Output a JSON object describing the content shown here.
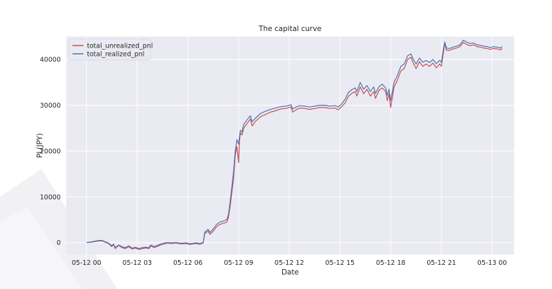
{
  "colors": {
    "plot_background": "#eaeaf2",
    "grid": "#ffffff",
    "unrealized": "#c44e52",
    "realized": "#4c72b0",
    "decor": "#f1f1f4"
  },
  "chart_data": {
    "type": "line",
    "title": "The capital curve",
    "xlabel": "Date",
    "ylabel": "PL(JPY)",
    "x_unit": "hours since 05-12 00",
    "xlim": [
      -1.2,
      25.3
    ],
    "ylim": [
      -2600,
      45000
    ],
    "grid": true,
    "legend_position": "top-left",
    "x_ticks": [
      {
        "value": 0,
        "label": "05-12 00"
      },
      {
        "value": 3,
        "label": "05-12 03"
      },
      {
        "value": 6,
        "label": "05-12 06"
      },
      {
        "value": 9,
        "label": "05-12 09"
      },
      {
        "value": 12,
        "label": "05-12 12"
      },
      {
        "value": 15,
        "label": "05-12 15"
      },
      {
        "value": 18,
        "label": "05-12 18"
      },
      {
        "value": 21,
        "label": "05-12 21"
      },
      {
        "value": 24,
        "label": "05-13 00"
      }
    ],
    "y_ticks": [
      {
        "value": 0,
        "label": "0"
      },
      {
        "value": 10000,
        "label": "10000"
      },
      {
        "value": 20000,
        "label": "20000"
      },
      {
        "value": 30000,
        "label": "30000"
      },
      {
        "value": 40000,
        "label": "40000"
      }
    ],
    "series": [
      {
        "name": "total_unrealized_pnl",
        "color": "#c44e52",
        "points": [
          [
            0,
            0
          ],
          [
            0.3,
            100
          ],
          [
            0.6,
            300
          ],
          [
            0.9,
            400
          ],
          [
            1.1,
            100
          ],
          [
            1.3,
            -200
          ],
          [
            1.5,
            -900
          ],
          [
            1.6,
            -400
          ],
          [
            1.7,
            -1300
          ],
          [
            1.9,
            -600
          ],
          [
            2.1,
            -1100
          ],
          [
            2.3,
            -1300
          ],
          [
            2.5,
            -900
          ],
          [
            2.7,
            -1400
          ],
          [
            2.9,
            -1200
          ],
          [
            3.1,
            -1500
          ],
          [
            3.3,
            -1300
          ],
          [
            3.5,
            -1200
          ],
          [
            3.7,
            -1300
          ],
          [
            3.8,
            -700
          ],
          [
            4.0,
            -1100
          ],
          [
            4.2,
            -800
          ],
          [
            4.4,
            -500
          ],
          [
            4.6,
            -300
          ],
          [
            4.8,
            -100
          ],
          [
            5.0,
            -200
          ],
          [
            5.3,
            -100
          ],
          [
            5.6,
            -300
          ],
          [
            5.9,
            -200
          ],
          [
            6.1,
            -400
          ],
          [
            6.3,
            -300
          ],
          [
            6.5,
            -200
          ],
          [
            6.7,
            -350
          ],
          [
            6.9,
            -100
          ],
          [
            7.0,
            2000
          ],
          [
            7.2,
            2500
          ],
          [
            7.3,
            1800
          ],
          [
            7.5,
            2500
          ],
          [
            7.7,
            3500
          ],
          [
            7.9,
            4000
          ],
          [
            8.1,
            4200
          ],
          [
            8.3,
            4500
          ],
          [
            8.4,
            5500
          ],
          [
            8.5,
            8000
          ],
          [
            8.7,
            14000
          ],
          [
            8.8,
            19000
          ],
          [
            8.9,
            21000
          ],
          [
            9.0,
            17500
          ],
          [
            9.05,
            22000
          ],
          [
            9.1,
            24000
          ],
          [
            9.2,
            23500
          ],
          [
            9.3,
            25000
          ],
          [
            9.5,
            26000
          ],
          [
            9.7,
            27000
          ],
          [
            9.8,
            25500
          ],
          [
            10.0,
            26500
          ],
          [
            10.3,
            27500
          ],
          [
            10.6,
            28000
          ],
          [
            10.9,
            28500
          ],
          [
            11.2,
            28800
          ],
          [
            11.5,
            29200
          ],
          [
            11.8,
            29300
          ],
          [
            12.1,
            29600
          ],
          [
            12.2,
            28500
          ],
          [
            12.4,
            29000
          ],
          [
            12.6,
            29400
          ],
          [
            12.9,
            29300
          ],
          [
            13.2,
            29100
          ],
          [
            13.5,
            29300
          ],
          [
            13.8,
            29500
          ],
          [
            14.1,
            29500
          ],
          [
            14.4,
            29300
          ],
          [
            14.7,
            29400
          ],
          [
            14.9,
            29000
          ],
          [
            15.1,
            29700
          ],
          [
            15.3,
            30500
          ],
          [
            15.5,
            32000
          ],
          [
            15.7,
            32600
          ],
          [
            15.9,
            33000
          ],
          [
            16.0,
            32000
          ],
          [
            16.2,
            34000
          ],
          [
            16.4,
            32500
          ],
          [
            16.6,
            33500
          ],
          [
            16.8,
            32000
          ],
          [
            17.0,
            33000
          ],
          [
            17.1,
            31500
          ],
          [
            17.3,
            33200
          ],
          [
            17.5,
            33800
          ],
          [
            17.7,
            33000
          ],
          [
            17.8,
            31000
          ],
          [
            17.9,
            32500
          ],
          [
            18.0,
            29500
          ],
          [
            18.2,
            34000
          ],
          [
            18.4,
            35500
          ],
          [
            18.6,
            37500
          ],
          [
            18.8,
            38000
          ],
          [
            19.0,
            40000
          ],
          [
            19.2,
            40500
          ],
          [
            19.3,
            39500
          ],
          [
            19.5,
            38000
          ],
          [
            19.7,
            39500
          ],
          [
            19.9,
            38500
          ],
          [
            20.1,
            39000
          ],
          [
            20.3,
            38500
          ],
          [
            20.5,
            39200
          ],
          [
            20.7,
            38200
          ],
          [
            20.9,
            39000
          ],
          [
            21.0,
            38500
          ],
          [
            21.1,
            41000
          ],
          [
            21.2,
            43500
          ],
          [
            21.3,
            42000
          ],
          [
            21.5,
            42000
          ],
          [
            21.7,
            42300
          ],
          [
            21.9,
            42500
          ],
          [
            22.1,
            42800
          ],
          [
            22.3,
            43700
          ],
          [
            22.5,
            43300
          ],
          [
            22.7,
            43000
          ],
          [
            22.9,
            43200
          ],
          [
            23.1,
            42800
          ],
          [
            23.3,
            42700
          ],
          [
            23.5,
            42500
          ],
          [
            23.7,
            42400
          ],
          [
            23.9,
            42200
          ],
          [
            24.1,
            42400
          ],
          [
            24.3,
            42300
          ],
          [
            24.5,
            42100
          ],
          [
            24.6,
            42400
          ]
        ]
      },
      {
        "name": "total_realized_pnl",
        "color": "#4c72b0",
        "points": [
          [
            0,
            0
          ],
          [
            0.3,
            150
          ],
          [
            0.6,
            400
          ],
          [
            0.9,
            500
          ],
          [
            1.1,
            200
          ],
          [
            1.3,
            -100
          ],
          [
            1.5,
            -700
          ],
          [
            1.6,
            -300
          ],
          [
            1.7,
            -1100
          ],
          [
            1.9,
            -500
          ],
          [
            2.1,
            -900
          ],
          [
            2.3,
            -1100
          ],
          [
            2.5,
            -700
          ],
          [
            2.7,
            -1200
          ],
          [
            2.9,
            -1000
          ],
          [
            3.1,
            -1300
          ],
          [
            3.3,
            -1100
          ],
          [
            3.5,
            -1000
          ],
          [
            3.7,
            -1100
          ],
          [
            3.8,
            -500
          ],
          [
            4.0,
            -900
          ],
          [
            4.2,
            -600
          ],
          [
            4.4,
            -300
          ],
          [
            4.6,
            -100
          ],
          [
            4.8,
            0
          ],
          [
            5.0,
            -50
          ],
          [
            5.3,
            0
          ],
          [
            5.6,
            -150
          ],
          [
            5.9,
            -50
          ],
          [
            6.1,
            -250
          ],
          [
            6.3,
            -150
          ],
          [
            6.5,
            -50
          ],
          [
            6.7,
            -200
          ],
          [
            6.9,
            0
          ],
          [
            7.0,
            2300
          ],
          [
            7.2,
            2900
          ],
          [
            7.3,
            2200
          ],
          [
            7.5,
            3000
          ],
          [
            7.7,
            4000
          ],
          [
            7.9,
            4500
          ],
          [
            8.1,
            4700
          ],
          [
            8.3,
            5000
          ],
          [
            8.4,
            6200
          ],
          [
            8.5,
            9000
          ],
          [
            8.7,
            15500
          ],
          [
            8.8,
            20000
          ],
          [
            8.9,
            22500
          ],
          [
            9.0,
            21500
          ],
          [
            9.05,
            23000
          ],
          [
            9.1,
            24500
          ],
          [
            9.2,
            24200
          ],
          [
            9.3,
            25800
          ],
          [
            9.5,
            26800
          ],
          [
            9.7,
            27700
          ],
          [
            9.8,
            26400
          ],
          [
            10.0,
            27200
          ],
          [
            10.3,
            28200
          ],
          [
            10.6,
            28700
          ],
          [
            10.9,
            29100
          ],
          [
            11.2,
            29400
          ],
          [
            11.5,
            29700
          ],
          [
            11.8,
            29800
          ],
          [
            12.1,
            30100
          ],
          [
            12.2,
            29200
          ],
          [
            12.4,
            29600
          ],
          [
            12.6,
            29900
          ],
          [
            12.9,
            29800
          ],
          [
            13.2,
            29600
          ],
          [
            13.5,
            29800
          ],
          [
            13.8,
            30000
          ],
          [
            14.1,
            30000
          ],
          [
            14.4,
            29800
          ],
          [
            14.7,
            29900
          ],
          [
            14.9,
            29600
          ],
          [
            15.1,
            30300
          ],
          [
            15.3,
            31300
          ],
          [
            15.5,
            32800
          ],
          [
            15.7,
            33400
          ],
          [
            15.9,
            33800
          ],
          [
            16.0,
            33000
          ],
          [
            16.2,
            35000
          ],
          [
            16.4,
            33500
          ],
          [
            16.6,
            34300
          ],
          [
            16.8,
            33000
          ],
          [
            17.0,
            34000
          ],
          [
            17.1,
            32600
          ],
          [
            17.3,
            34000
          ],
          [
            17.5,
            34600
          ],
          [
            17.7,
            33800
          ],
          [
            17.8,
            32200
          ],
          [
            17.9,
            33500
          ],
          [
            18.0,
            31000
          ],
          [
            18.2,
            35000
          ],
          [
            18.4,
            36500
          ],
          [
            18.6,
            38500
          ],
          [
            18.8,
            39000
          ],
          [
            19.0,
            40800
          ],
          [
            19.2,
            41200
          ],
          [
            19.3,
            40300
          ],
          [
            19.5,
            39000
          ],
          [
            19.7,
            40300
          ],
          [
            19.9,
            39400
          ],
          [
            20.1,
            39800
          ],
          [
            20.3,
            39300
          ],
          [
            20.5,
            40000
          ],
          [
            20.7,
            39100
          ],
          [
            20.9,
            39800
          ],
          [
            21.0,
            39400
          ],
          [
            21.1,
            41800
          ],
          [
            21.2,
            43800
          ],
          [
            21.3,
            42500
          ],
          [
            21.5,
            42400
          ],
          [
            21.7,
            42700
          ],
          [
            21.9,
            42900
          ],
          [
            22.1,
            43200
          ],
          [
            22.3,
            44200
          ],
          [
            22.5,
            43800
          ],
          [
            22.7,
            43500
          ],
          [
            22.9,
            43600
          ],
          [
            23.1,
            43200
          ],
          [
            23.3,
            43100
          ],
          [
            23.5,
            42900
          ],
          [
            23.7,
            42800
          ],
          [
            23.9,
            42600
          ],
          [
            24.1,
            42800
          ],
          [
            24.3,
            42700
          ],
          [
            24.5,
            42500
          ],
          [
            24.6,
            42800
          ]
        ]
      }
    ]
  }
}
